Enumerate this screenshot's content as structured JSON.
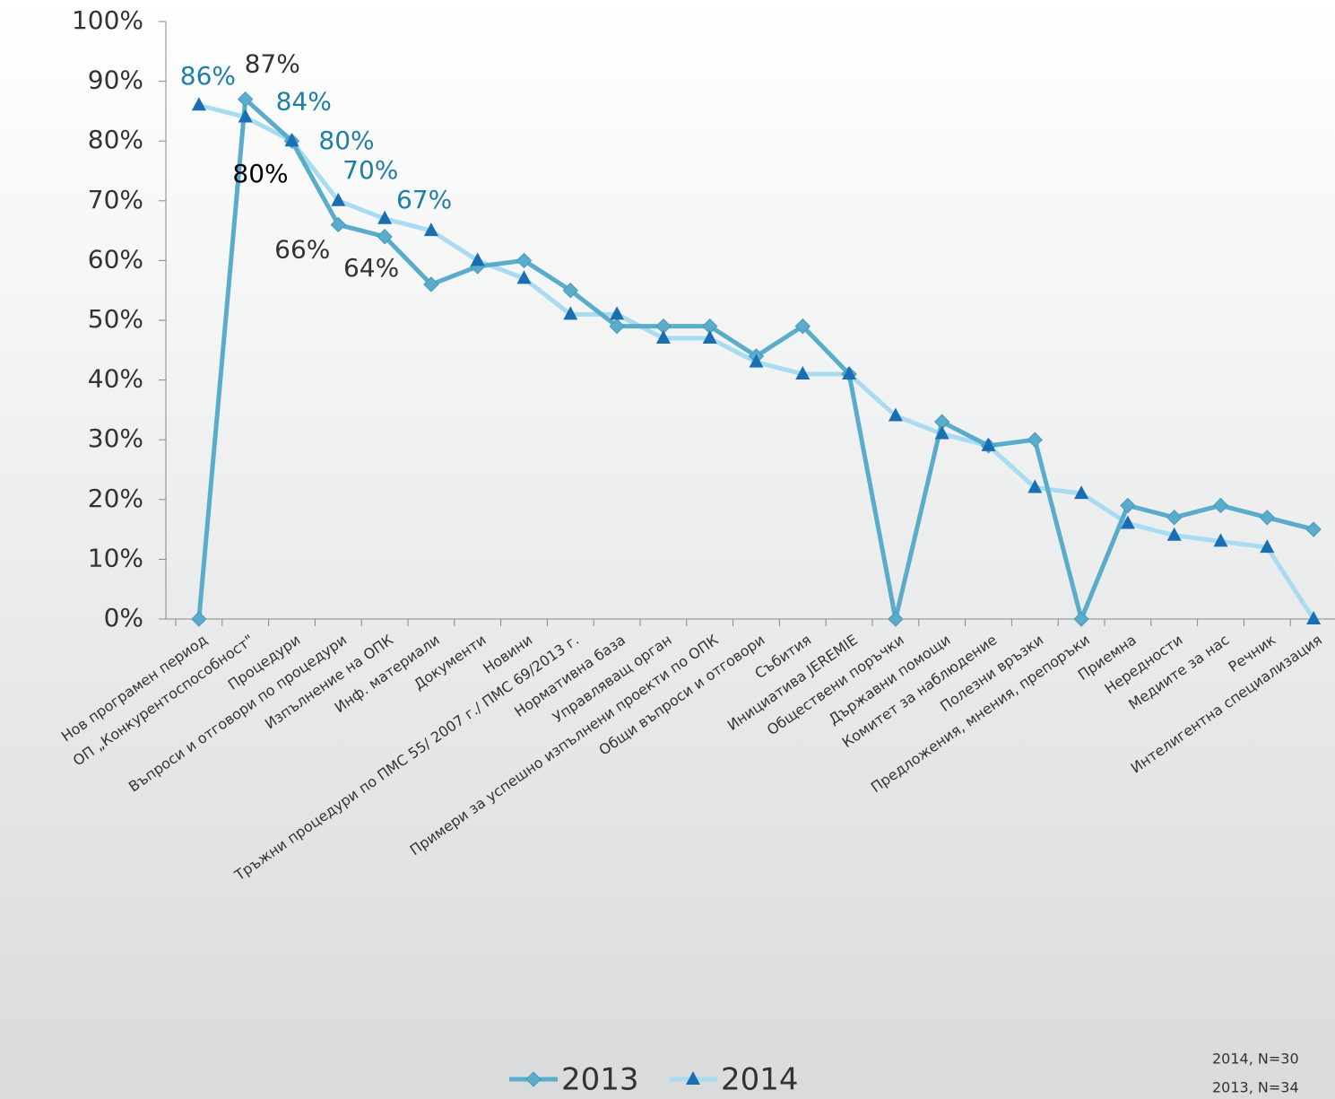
{
  "chart_data": {
    "type": "line",
    "categories": [
      "Нов програмен период",
      "ОП „Конкурентоспособност\"",
      "Процедури",
      "Въпроси и отговори по процедури",
      "Изпълнение на ОПК",
      "Инф. материали",
      "Документи",
      "Новини",
      "Тръжни процедури по ПМС 55/ 2007 г./ ПМС 69/2013 г.",
      "Нормативна база",
      "Управляващ орган",
      "Примери за успешно изпълнени проекти по ОПК",
      "Общи въпроси и отговори",
      "Събития",
      "Инициатива JEREMIE",
      "Обществени поръчки",
      "Държавни помощи",
      "Комитет за наблюдение",
      "Полезни връзки",
      "Предложения, мнения, препоръки",
      "Приемна",
      "Нередности",
      "Медиите за нас",
      "Речник",
      "Интелигентна специализация"
    ],
    "series": [
      {
        "name": "2013",
        "color": "#5aaccb",
        "marker": "diamond",
        "values": [
          0,
          87,
          80,
          66,
          64,
          56,
          59,
          60,
          55,
          49,
          49,
          49,
          44,
          49,
          41,
          0,
          33,
          29,
          30,
          0,
          19,
          17,
          19,
          17,
          15
        ],
        "value_labels": [
          null,
          "87%",
          "80%",
          "66%",
          "64%",
          null,
          null,
          null,
          null,
          null,
          null,
          null,
          null,
          null,
          null,
          null,
          null,
          null,
          null,
          null,
          null,
          null,
          null,
          null,
          null
        ]
      },
      {
        "name": "2014",
        "color": "#a9dbf1",
        "marker": "triangle",
        "values": [
          86,
          84,
          80,
          70,
          67,
          65,
          60,
          57,
          51,
          51,
          47,
          47,
          43,
          41,
          41,
          34,
          31,
          29,
          22,
          21,
          16,
          14,
          13,
          12,
          0
        ],
        "value_labels": [
          "86%",
          "84%",
          "80%",
          "70%",
          "67%",
          null,
          null,
          null,
          null,
          null,
          null,
          null,
          null,
          null,
          null,
          null,
          null,
          null,
          null,
          null,
          null,
          null,
          null,
          null,
          null
        ]
      }
    ],
    "ylim": [
      0,
      100
    ],
    "yticks": [
      {
        "value": 0,
        "label": "0%"
      },
      {
        "value": 10,
        "label": "10%"
      },
      {
        "value": 20,
        "label": "20%"
      },
      {
        "value": 30,
        "label": "30%"
      },
      {
        "value": 40,
        "label": "40%"
      },
      {
        "value": 50,
        "label": "50%"
      },
      {
        "value": 60,
        "label": "60%"
      },
      {
        "value": 70,
        "label": "70%"
      },
      {
        "value": 80,
        "label": "80%"
      },
      {
        "value": 90,
        "label": "90%"
      },
      {
        "value": 100,
        "label": "100%"
      }
    ],
    "notes": [
      "2014, N=30",
      "2013, N=34"
    ]
  }
}
